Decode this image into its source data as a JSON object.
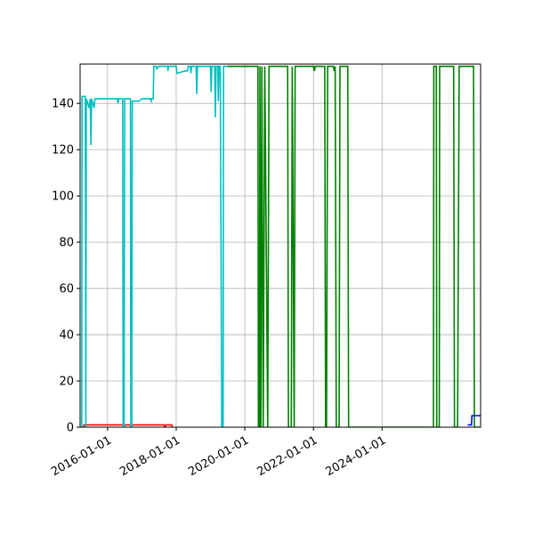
{
  "chart_data": {
    "type": "line",
    "title": "",
    "xlabel": "",
    "ylabel": "",
    "x_axis_type": "date",
    "xlim": [
      "2015-03-15",
      "2026-11-15"
    ],
    "ylim": [
      0,
      157
    ],
    "grid": true,
    "legend": "none",
    "x_ticks": [
      "2016-01-01",
      "2018-01-01",
      "2020-01-01",
      "2022-01-01",
      "2024-01-01"
    ],
    "y_ticks": [
      0,
      20,
      40,
      60,
      80,
      100,
      120,
      140
    ],
    "y_tick_labels": [
      "0",
      "20",
      "40",
      "60",
      "80",
      "100",
      "120",
      "140"
    ],
    "series": [
      {
        "color": "#ff0000",
        "points": [
          [
            "2015-04-01",
            0
          ],
          [
            "2015-04-20",
            0
          ],
          [
            "2015-04-25",
            1
          ],
          [
            "2017-08-20",
            1
          ],
          [
            "2017-09-05",
            0
          ],
          [
            "2017-09-10",
            1
          ],
          [
            "2017-11-15",
            1
          ],
          [
            "2017-11-20",
            0
          ]
        ]
      },
      {
        "color": "#00bfbf",
        "points": [
          [
            "2015-04-01",
            0
          ],
          [
            "2015-04-05",
            143
          ],
          [
            "2015-05-10",
            143
          ],
          [
            "2015-05-15",
            0
          ],
          [
            "2015-05-20",
            142
          ],
          [
            "2015-06-20",
            138
          ],
          [
            "2015-07-01",
            142
          ],
          [
            "2015-07-08",
            122
          ],
          [
            "2015-07-15",
            142
          ],
          [
            "2015-08-10",
            138
          ],
          [
            "2015-08-20",
            142
          ],
          [
            "2016-04-15",
            142
          ],
          [
            "2016-04-20",
            140
          ],
          [
            "2016-05-01",
            142
          ],
          [
            "2016-06-10",
            142
          ],
          [
            "2016-06-15",
            0
          ],
          [
            "2016-06-25",
            0
          ],
          [
            "2016-07-01",
            142
          ],
          [
            "2016-09-01",
            142
          ],
          [
            "2016-09-05",
            0
          ],
          [
            "2016-09-15",
            0
          ],
          [
            "2016-09-20",
            141
          ],
          [
            "2016-12-01",
            141
          ],
          [
            "2017-01-01",
            142
          ],
          [
            "2017-04-01",
            142
          ],
          [
            "2017-04-10",
            141
          ],
          [
            "2017-04-15",
            142
          ],
          [
            "2017-05-01",
            142
          ],
          [
            "2017-05-08",
            156
          ],
          [
            "2017-06-01",
            156
          ],
          [
            "2017-06-10",
            155
          ],
          [
            "2017-07-01",
            156
          ],
          [
            "2017-10-01",
            156
          ],
          [
            "2017-10-05",
            154
          ],
          [
            "2017-10-10",
            156
          ],
          [
            "2018-01-01",
            156
          ],
          [
            "2018-01-10",
            153
          ],
          [
            "2018-04-01",
            154
          ],
          [
            "2018-05-01",
            154
          ],
          [
            "2018-05-08",
            156
          ],
          [
            "2018-06-01",
            156
          ],
          [
            "2018-06-05",
            153
          ],
          [
            "2018-06-15",
            156
          ],
          [
            "2018-08-01",
            156
          ],
          [
            "2018-08-08",
            144
          ],
          [
            "2018-08-15",
            156
          ],
          [
            "2019-01-01",
            156
          ],
          [
            "2019-01-08",
            145
          ],
          [
            "2019-01-15",
            156
          ],
          [
            "2019-02-15",
            156
          ],
          [
            "2019-02-22",
            134
          ],
          [
            "2019-03-01",
            156
          ],
          [
            "2019-03-20",
            156
          ],
          [
            "2019-03-25",
            141
          ],
          [
            "2019-04-01",
            156
          ],
          [
            "2019-04-15",
            156
          ],
          [
            "2019-05-01",
            0
          ],
          [
            "2019-05-15",
            0
          ],
          [
            "2019-05-20",
            156
          ],
          [
            "2019-07-01",
            156
          ]
        ]
      },
      {
        "color": "#008000",
        "points": [
          [
            "2019-07-01",
            156
          ],
          [
            "2020-05-20",
            156
          ],
          [
            "2020-05-25",
            0
          ],
          [
            "2020-06-05",
            0
          ],
          [
            "2020-06-10",
            156
          ],
          [
            "2020-06-20",
            0
          ],
          [
            "2020-07-01",
            156
          ],
          [
            "2020-07-15",
            0
          ],
          [
            "2020-08-01",
            156
          ],
          [
            "2020-09-01",
            0
          ],
          [
            "2020-09-15",
            156
          ],
          [
            "2021-04-01",
            156
          ],
          [
            "2021-04-10",
            0
          ],
          [
            "2021-05-10",
            0
          ],
          [
            "2021-05-20",
            156
          ],
          [
            "2021-06-10",
            0
          ],
          [
            "2021-06-20",
            156
          ],
          [
            "2022-01-01",
            156
          ],
          [
            "2022-01-10",
            154
          ],
          [
            "2022-01-20",
            156
          ],
          [
            "2022-05-01",
            156
          ],
          [
            "2022-05-10",
            0
          ],
          [
            "2022-05-20",
            0
          ],
          [
            "2022-06-01",
            156
          ],
          [
            "2022-08-01",
            156
          ],
          [
            "2022-08-10",
            154
          ],
          [
            "2022-08-20",
            156
          ],
          [
            "2022-09-01",
            0
          ],
          [
            "2022-10-01",
            0
          ],
          [
            "2022-10-10",
            156
          ],
          [
            "2023-01-01",
            156
          ],
          [
            "2023-01-10",
            0
          ],
          [
            "2023-12-01",
            0
          ],
          [
            "2024-05-01",
            0
          ],
          [
            "2025-01-01",
            0
          ],
          [
            "2025-07-01",
            0
          ],
          [
            "2025-07-05",
            156
          ],
          [
            "2025-08-01",
            156
          ],
          [
            "2025-08-05",
            0
          ],
          [
            "2025-09-01",
            0
          ],
          [
            "2025-09-05",
            156
          ],
          [
            "2026-02-01",
            156
          ],
          [
            "2026-02-10",
            0
          ],
          [
            "2026-03-15",
            0
          ],
          [
            "2026-04-01",
            156
          ],
          [
            "2026-09-01",
            156
          ],
          [
            "2026-09-10",
            0
          ],
          [
            "2026-11-15",
            0
          ]
        ]
      },
      {
        "color": "#0000ff",
        "points": [
          [
            "2026-07-01",
            1
          ],
          [
            "2026-08-10",
            1
          ],
          [
            "2026-08-15",
            5
          ],
          [
            "2026-11-15",
            5
          ]
        ]
      }
    ]
  }
}
